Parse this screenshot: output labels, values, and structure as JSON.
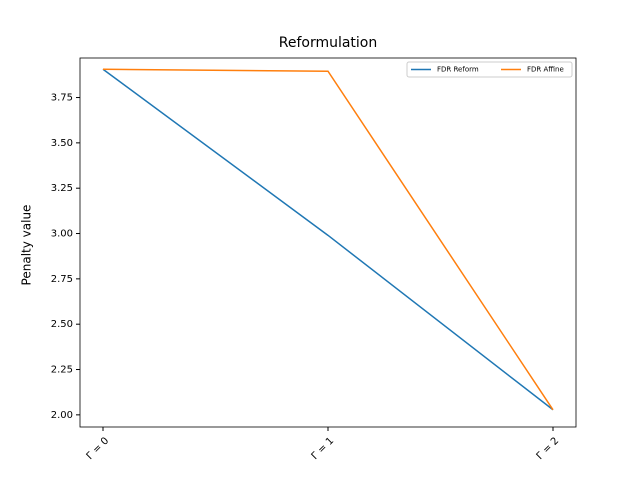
{
  "chart_data": {
    "type": "line",
    "title": "Reformulation",
    "ylabel": "Penalty value",
    "categories": [
      "Γ = 0",
      "Γ = 1",
      "Γ = 2"
    ],
    "series": [
      {
        "name": "FDR Reform",
        "color": "#1f77b4",
        "values": [
          3.906,
          2.99,
          2.028
        ]
      },
      {
        "name": "FDR Affine",
        "color": "#ff7f0e",
        "values": [
          3.906,
          3.895,
          2.028
        ]
      }
    ],
    "ylim": [
      1.933,
      3.968
    ],
    "yticks": [
      {
        "value": 2,
        "label": "2.00"
      },
      {
        "value": 2.25,
        "label": "2.25"
      },
      {
        "value": 2.5,
        "label": "2.50"
      },
      {
        "value": 2.75,
        "label": "2.75"
      },
      {
        "value": 3,
        "label": "3.00"
      },
      {
        "value": 3.25,
        "label": "3.25"
      },
      {
        "value": 3.5,
        "label": "3.50"
      },
      {
        "value": 3.75,
        "label": "3.75"
      }
    ],
    "legend": "upper right"
  }
}
